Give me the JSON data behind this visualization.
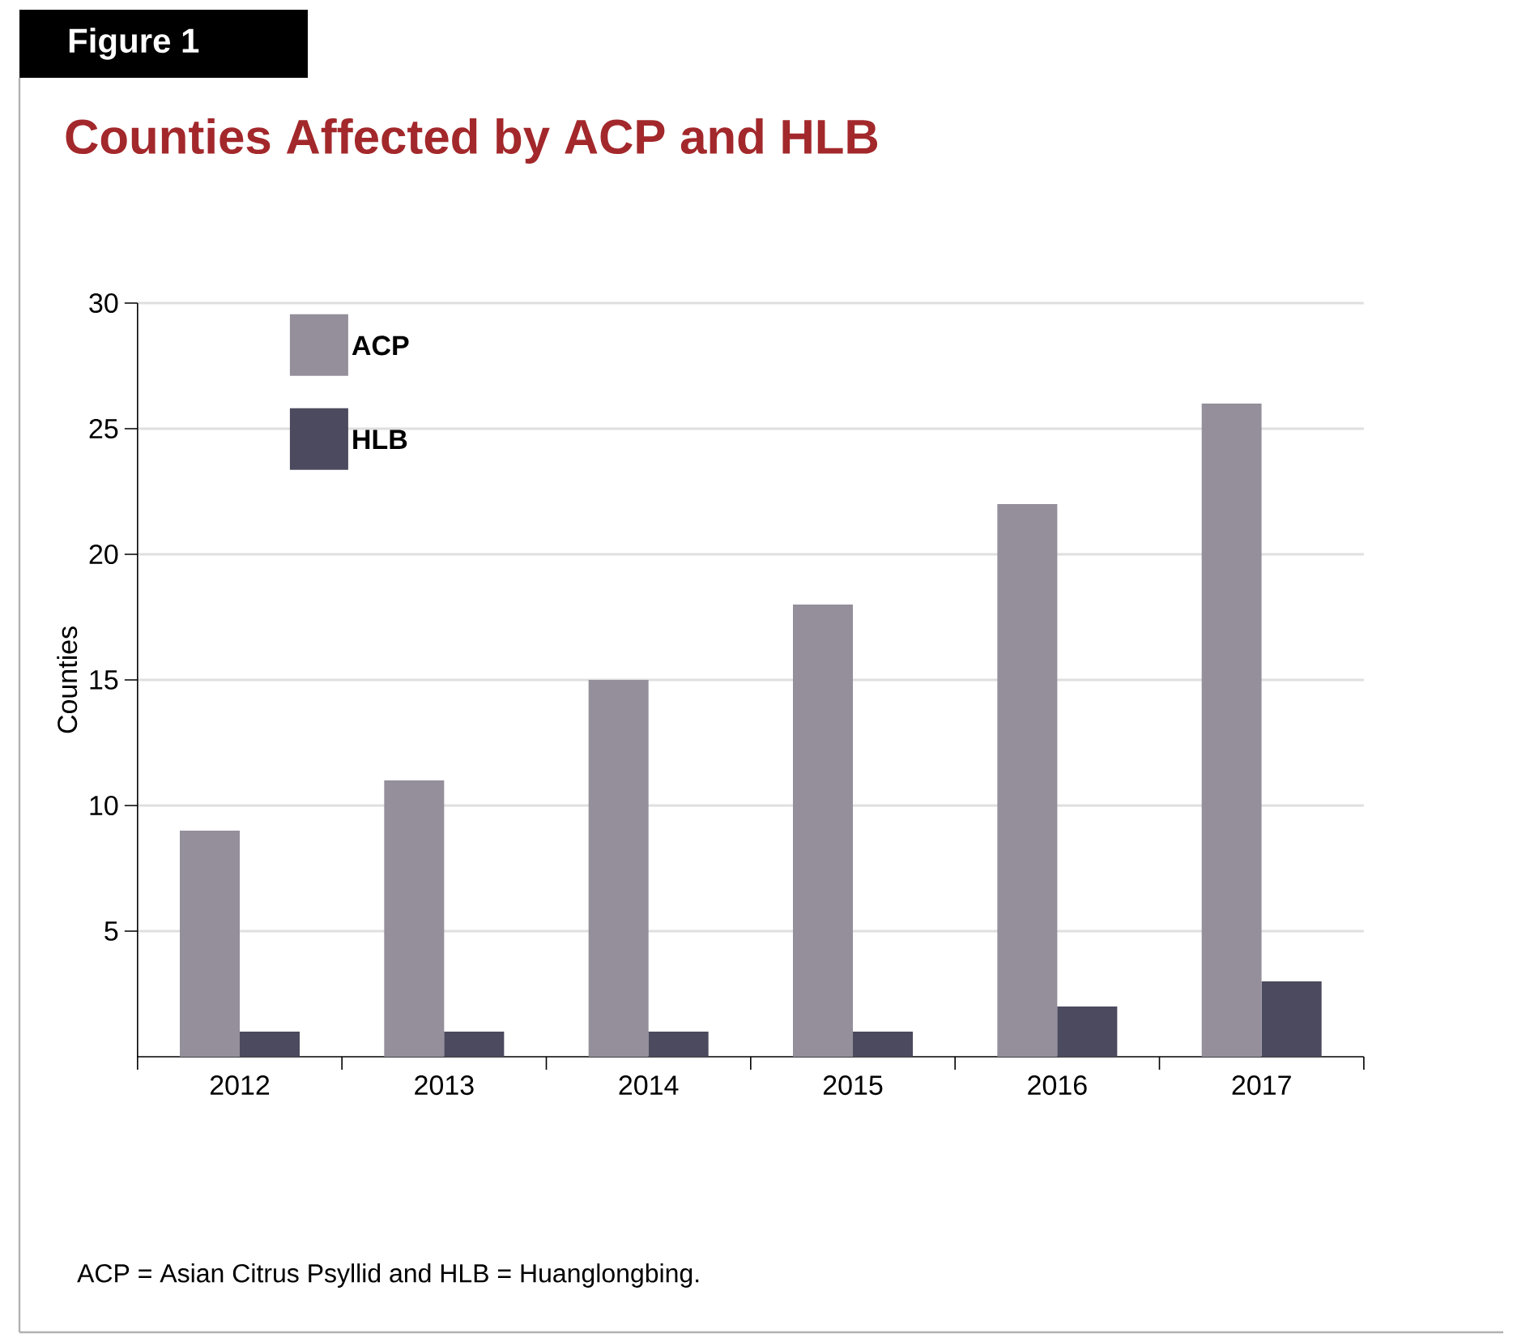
{
  "chart_data": {
    "type": "bar",
    "title": "Counties Affected by ACP and HLB",
    "ylabel": "Counties",
    "categories": [
      "2012",
      "2013",
      "2014",
      "2015",
      "2016",
      "2017"
    ],
    "series": [
      {
        "name": "ACP",
        "color": "#948f9b",
        "values": [
          9,
          11,
          15,
          18,
          22,
          26
        ]
      },
      {
        "name": "HLB",
        "color": "#4b4a5e",
        "values": [
          1,
          1,
          1,
          1,
          2,
          3
        ]
      }
    ],
    "ylim": [
      0,
      30
    ],
    "yticks": [
      5,
      10,
      15,
      20,
      25,
      30
    ],
    "grid": "y",
    "legend": "top left",
    "annotations": [
      "Figure 1",
      "ACP = Asian Citrus Psyllid and HLB = Huanglongbing."
    ]
  }
}
